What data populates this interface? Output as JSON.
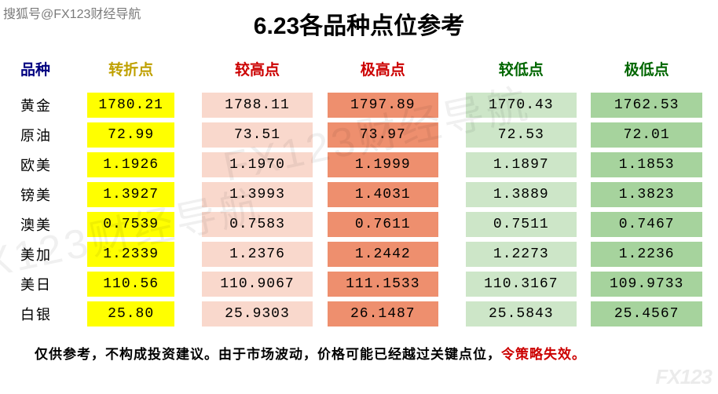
{
  "source_label": "搜狐号@FX123财经导航",
  "title": "6.23各品种点位参考",
  "watermark_text": "FX123财经导航",
  "corner_brand": "FX123",
  "colors": {
    "header_product": "#000080",
    "header_turn": "#bfa000",
    "header_high": "#cc0000",
    "header_low": "#006600",
    "cell_turn_bg": "#ffff00",
    "cell_high1_bg": "#f9d8cc",
    "cell_high2_bg": "#ee8f6e",
    "cell_low1_bg": "#cde6c8",
    "cell_low2_bg": "#a6d39d",
    "row_text": "#000000",
    "warn_text": "#cc0000"
  },
  "columns": [
    {
      "key": "name",
      "label": "品种",
      "color_key": "header_product"
    },
    {
      "key": "turn",
      "label": "转折点",
      "color_key": "header_turn"
    },
    {
      "key": "high1",
      "label": "较高点",
      "color_key": "header_high"
    },
    {
      "key": "high2",
      "label": "极高点",
      "color_key": "header_high"
    },
    {
      "key": "low1",
      "label": "较低点",
      "color_key": "header_low"
    },
    {
      "key": "low2",
      "label": "极低点",
      "color_key": "header_low"
    }
  ],
  "rows": [
    {
      "name": "黄金",
      "turn": "1780.21",
      "high1": "1788.11",
      "high2": "1797.89",
      "low1": "1770.43",
      "low2": "1762.53"
    },
    {
      "name": "原油",
      "turn": "72.99",
      "high1": "73.51",
      "high2": "73.97",
      "low1": "72.53",
      "low2": "72.01"
    },
    {
      "name": "欧美",
      "turn": "1.1926",
      "high1": "1.1970",
      "high2": "1.1999",
      "low1": "1.1897",
      "low2": "1.1853"
    },
    {
      "name": "镑美",
      "turn": "1.3927",
      "high1": "1.3993",
      "high2": "1.4031",
      "low1": "1.3889",
      "low2": "1.3823"
    },
    {
      "name": "澳美",
      "turn": "0.7539",
      "high1": "0.7583",
      "high2": "0.7611",
      "low1": "0.7511",
      "low2": "0.7467"
    },
    {
      "name": "美加",
      "turn": "1.2339",
      "high1": "1.2376",
      "high2": "1.2442",
      "low1": "1.2273",
      "low2": "1.2236"
    },
    {
      "name": "美日",
      "turn": "110.56",
      "high1": "110.9067",
      "high2": "111.1533",
      "low1": "110.3167",
      "low2": "109.9733"
    },
    {
      "name": "白银",
      "turn": "25.80",
      "high1": "25.9303",
      "high2": "26.1487",
      "low1": "25.5843",
      "low2": "25.4567"
    }
  ],
  "footnote_main": "仅供参考，不构成投资建议。由于市场波动，价格可能已经越过关键点位，",
  "footnote_warn": "令策略失效。",
  "col_widths": {
    "name": 72,
    "turn": 110,
    "high1": 140,
    "high2": 140,
    "low1": 140,
    "low2": 140
  },
  "cell_bg_map": {
    "turn": "cell_turn_bg",
    "high1": "cell_high1_bg",
    "high2": "cell_high2_bg",
    "low1": "cell_low1_bg",
    "low2": "cell_low2_bg"
  }
}
